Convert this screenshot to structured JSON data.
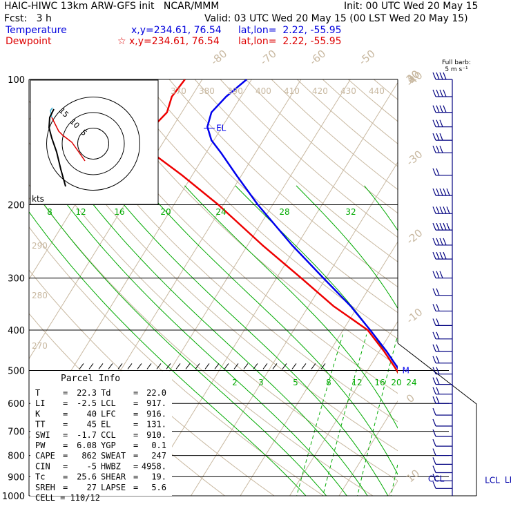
{
  "header": {
    "title": "HAIC-HIWC 13km ARW-GFS init",
    "model": "NCAR/MMM",
    "init": "Init: 00 UTC Wed 20 May 15",
    "fcst_label": "Fcst:",
    "fcst_value": "3 h",
    "valid": "Valid: 03 UTC Wed 20 May 15 (00 LST Wed 20 May 15)",
    "temp_label": "Temperature",
    "temp_xy": "x,y=234.61, 76.54",
    "temp_latlon": "lat,lon=  2.22, -55.95",
    "dew_label": "Dewpoint",
    "dew_xy": "x,y=234.61, 76.54",
    "dew_marker": "☆",
    "dew_latlon": "lat,lon=  2.22, -55.95"
  },
  "colors": {
    "temperature": "#0000ee",
    "dewpoint": "#ee0000",
    "isotherm": "#c8b8a0",
    "mixing_ratio": "#00aa00",
    "wind_barb": "#000080",
    "grid": "#000000"
  },
  "hodograph": {
    "rings": [
      "5",
      "10",
      "15"
    ],
    "units": "kts"
  },
  "parcel_info": {
    "title": "Parcel Info",
    "left": [
      {
        "label": "T",
        "value": "22.3"
      },
      {
        "label": "LI",
        "value": "-2.5"
      },
      {
        "label": "K",
        "value": "40"
      },
      {
        "label": "TT",
        "value": "45"
      },
      {
        "label": "SWI",
        "value": "-1.7"
      },
      {
        "label": "PW",
        "value": "6.08"
      },
      {
        "label": "CAPE",
        "value": "862"
      },
      {
        "label": "CIN",
        "value": "-5"
      },
      {
        "label": "Tc",
        "value": "25.6"
      },
      {
        "label": "SREH",
        "value": "27"
      }
    ],
    "right": [
      {
        "label": "Td",
        "value": "22.0"
      },
      {
        "label": "LCL",
        "value": "917."
      },
      {
        "label": "LFC",
        "value": "916."
      },
      {
        "label": "EL",
        "value": "131."
      },
      {
        "label": "CCL",
        "value": "910."
      },
      {
        "label": "YGP",
        "value": "0.1"
      },
      {
        "label": "SWEAT",
        "value": "247"
      },
      {
        "label": "HWBZ",
        "value": "4958."
      },
      {
        "label": "SHEAR",
        "value": "19."
      },
      {
        "label": "LAPSE",
        "value": "5.6"
      }
    ],
    "cell_label": "CELL",
    "cell_value": "110/12"
  },
  "wind_legend": {
    "line1": "Full barb:",
    "line2": "5 m s⁻¹"
  },
  "chart_data": {
    "type": "line",
    "chart_kind": "Skew-T log-P sounding",
    "y_axis": "pressure (hPa), log scale, top 100",
    "pressure_ticks": [
      "100",
      "200",
      "300",
      "400",
      "500",
      "600",
      "700",
      "800",
      "900",
      "1000"
    ],
    "isotherm_labels": [
      {
        "t": -80,
        "text": "-80"
      },
      {
        "t": -70,
        "text": "-70"
      },
      {
        "t": -60,
        "text": "-60"
      },
      {
        "t": -50,
        "text": "-50"
      },
      {
        "t": -40,
        "text": "-40"
      },
      {
        "t": -30,
        "text": "-30"
      },
      {
        "t": -20,
        "text": "-20"
      },
      {
        "t": -10,
        "text": "-10"
      },
      {
        "t": 0,
        "text": "0"
      },
      {
        "t": 10,
        "text": "10"
      },
      {
        "t": 20,
        "text": "20"
      },
      {
        "t": 30,
        "text": "30"
      },
      {
        "t": 40,
        "text": "40"
      }
    ],
    "theta_labels_top": [
      "370",
      "380",
      "390",
      "400",
      "410",
      "420",
      "430",
      "440"
    ],
    "theta_labels_left": [
      "290",
      "280",
      "270"
    ],
    "mixing_ratio_labels_200": [
      {
        "w": 8,
        "text": "8"
      },
      {
        "w": 12,
        "text": "12"
      },
      {
        "w": 16,
        "text": "16"
      },
      {
        "w": 20,
        "text": "20"
      },
      {
        "w": 24,
        "text": "24"
      },
      {
        "w": 28,
        "text": "28"
      },
      {
        "w": 32,
        "text": "32"
      }
    ],
    "mixing_ratio_labels_550": [
      {
        "w": 2,
        "text": "2"
      },
      {
        "w": 3,
        "text": "3"
      },
      {
        "w": 5,
        "text": "5"
      },
      {
        "w": 8,
        "text": "8"
      },
      {
        "w": 12,
        "text": "12"
      },
      {
        "w": 16,
        "text": "16"
      },
      {
        "w": 20,
        "text": "20"
      },
      {
        "w": 24,
        "text": "24"
      }
    ],
    "series": [
      {
        "name": "Temperature",
        "p": [
          995,
          980,
          950,
          925,
          900,
          850,
          800,
          750,
          700,
          650,
          600,
          550,
          500,
          450,
          400,
          350,
          300,
          250,
          200,
          170,
          150,
          140,
          130,
          120,
          110,
          100
        ],
        "t": [
          23.0,
          23.0,
          22.8,
          22.5,
          21.5,
          19.0,
          16.3,
          13.5,
          10.5,
          7.5,
          4.5,
          1.0,
          -3.5,
          -8.5,
          -14.5,
          -21.5,
          -30.5,
          -41.0,
          -53.0,
          -61.0,
          -67.0,
          -70.5,
          -73.0,
          -74.0,
          -73.0,
          -71.0
        ]
      },
      {
        "name": "Dewpoint",
        "p": [
          995,
          980,
          950,
          925,
          900,
          850,
          800,
          750,
          700,
          650,
          600,
          550,
          500,
          450,
          400,
          350,
          300,
          250,
          200,
          170,
          150,
          140,
          130,
          120,
          110,
          100
        ],
        "t": [
          22.2,
          21.5,
          21.0,
          20.6,
          19.5,
          16.5,
          13.5,
          11.0,
          9.5,
          6.5,
          3.5,
          0.0,
          -4.0,
          -9.0,
          -15.0,
          -25.0,
          -35.0,
          -47.0,
          -61.0,
          -72.0,
          -81.0,
          -84.0,
          -84.0,
          -83.0,
          -84.0,
          -83.5
        ]
      }
    ],
    "annotations": [
      {
        "text": "EL",
        "p": 131,
        "t": -73.0,
        "color": "#0000ee"
      },
      {
        "text": "M",
        "p": 500,
        "t": -3.5,
        "color": "#0000ee"
      },
      {
        "text": "CCL",
        "p": 910,
        "t": 20.0,
        "color": "#0000aa"
      },
      {
        "text": "LCL",
        "p": 917,
        "t": 27.0,
        "color": "#0000aa"
      },
      {
        "text": "LFC",
        "p": 916,
        "t": 31.0,
        "color": "#0000aa"
      }
    ],
    "wind_barbs_ms": [
      {
        "p": 100,
        "speed": 20,
        "dir": 80
      },
      {
        "p": 110,
        "speed": 20,
        "dir": 80
      },
      {
        "p": 120,
        "speed": 20,
        "dir": 80
      },
      {
        "p": 130,
        "speed": 15,
        "dir": 80
      },
      {
        "p": 140,
        "speed": 15,
        "dir": 80
      },
      {
        "p": 150,
        "speed": 15,
        "dir": 80
      },
      {
        "p": 170,
        "speed": 10,
        "dir": 80
      },
      {
        "p": 190,
        "speed": 25,
        "dir": 80
      },
      {
        "p": 210,
        "speed": 25,
        "dir": 80
      },
      {
        "p": 230,
        "speed": 25,
        "dir": 80
      },
      {
        "p": 250,
        "speed": 20,
        "dir": 80
      },
      {
        "p": 270,
        "speed": 20,
        "dir": 80
      },
      {
        "p": 300,
        "speed": 15,
        "dir": 80
      },
      {
        "p": 330,
        "speed": 10,
        "dir": 80
      },
      {
        "p": 360,
        "speed": 10,
        "dir": 80
      },
      {
        "p": 390,
        "speed": 10,
        "dir": 80
      },
      {
        "p": 420,
        "speed": 10,
        "dir": 80
      },
      {
        "p": 450,
        "speed": 10,
        "dir": 80
      },
      {
        "p": 480,
        "speed": 10,
        "dir": 80
      },
      {
        "p": 510,
        "speed": 10,
        "dir": 80
      },
      {
        "p": 540,
        "speed": 10,
        "dir": 80
      },
      {
        "p": 570,
        "speed": 10,
        "dir": 80
      },
      {
        "p": 600,
        "speed": 10,
        "dir": 80
      },
      {
        "p": 640,
        "speed": 5,
        "dir": 80
      },
      {
        "p": 680,
        "speed": 5,
        "dir": 80
      },
      {
        "p": 720,
        "speed": 5,
        "dir": 80
      },
      {
        "p": 760,
        "speed": 5,
        "dir": 80
      },
      {
        "p": 800,
        "speed": 5,
        "dir": 80
      },
      {
        "p": 840,
        "speed": 5,
        "dir": 80
      },
      {
        "p": 880,
        "speed": 5,
        "dir": 80
      },
      {
        "p": 920,
        "speed": 5,
        "dir": 80
      },
      {
        "p": 960,
        "speed": 5,
        "dir": 80
      }
    ]
  }
}
